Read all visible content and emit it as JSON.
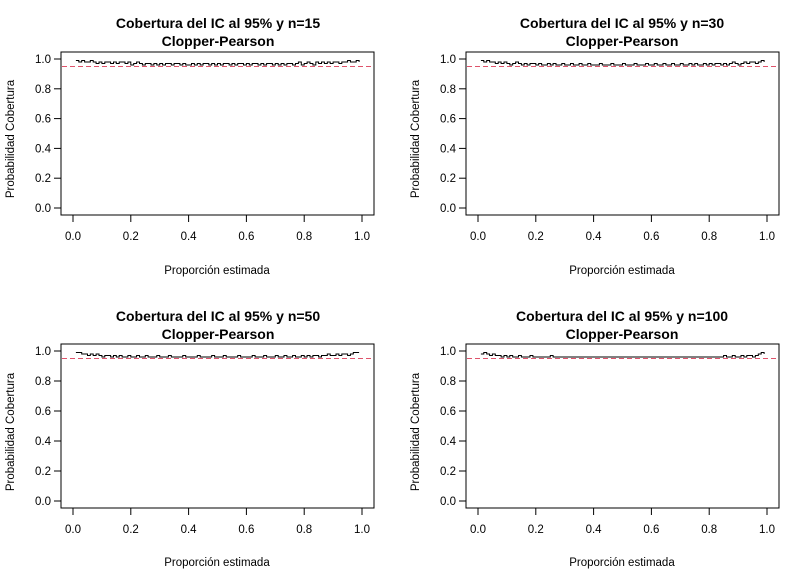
{
  "chart_data": [
    {
      "type": "line",
      "title": "Cobertura del IC al 95% y n=15",
      "subtitle": "Clopper-Pearson",
      "xlabel": "Proporción estimada",
      "ylabel": "Probabilidad Cobertura",
      "n": 15,
      "xlim": [
        0,
        1
      ],
      "ylim": [
        0,
        1
      ],
      "xticks": [
        "0.0",
        "0.2",
        "0.4",
        "0.6",
        "0.8",
        "1.0"
      ],
      "yticks": [
        "0.0",
        "0.2",
        "0.4",
        "0.6",
        "0.8",
        "1.0"
      ],
      "reference_line": {
        "y": 0.95,
        "color": "#df536b",
        "style": "dashed"
      },
      "series": [
        {
          "x": [
            0.01,
            0.02,
            0.03,
            0.04,
            0.05,
            0.06,
            0.07,
            0.08,
            0.09,
            0.1,
            0.11,
            0.12,
            0.13,
            0.14,
            0.15,
            0.16,
            0.17,
            0.18,
            0.19,
            0.2,
            0.21,
            0.22,
            0.23,
            0.24,
            0.25,
            0.26,
            0.27,
            0.28,
            0.29,
            0.3,
            0.31,
            0.32,
            0.33,
            0.34,
            0.35,
            0.36,
            0.37,
            0.38,
            0.39,
            0.4,
            0.41,
            0.42,
            0.43,
            0.44,
            0.45,
            0.46,
            0.47,
            0.48,
            0.49,
            0.5,
            0.51,
            0.52,
            0.53,
            0.54,
            0.55,
            0.56,
            0.57,
            0.58,
            0.59,
            0.6,
            0.61,
            0.62,
            0.63,
            0.64,
            0.65,
            0.66,
            0.67,
            0.68,
            0.69,
            0.7,
            0.71,
            0.72,
            0.73,
            0.74,
            0.75,
            0.76,
            0.77,
            0.78,
            0.79,
            0.8,
            0.81,
            0.82,
            0.83,
            0.84,
            0.85,
            0.86,
            0.87,
            0.88,
            0.89,
            0.9,
            0.91,
            0.92,
            0.93,
            0.94,
            0.95,
            0.96,
            0.97,
            0.98,
            0.99
          ],
          "y": [
            0.99,
            0.98,
            0.99,
            0.98,
            0.98,
            0.99,
            0.98,
            0.97,
            0.98,
            0.97,
            0.98,
            0.98,
            0.97,
            0.98,
            0.97,
            0.98,
            0.98,
            0.97,
            0.98,
            0.96,
            0.97,
            0.98,
            0.97,
            0.96,
            0.97,
            0.97,
            0.96,
            0.97,
            0.96,
            0.97,
            0.96,
            0.97,
            0.97,
            0.96,
            0.97,
            0.97,
            0.96,
            0.97,
            0.96,
            0.96,
            0.97,
            0.96,
            0.97,
            0.96,
            0.97,
            0.97,
            0.96,
            0.97,
            0.96,
            0.97,
            0.96,
            0.97,
            0.97,
            0.96,
            0.97,
            0.96,
            0.97,
            0.97,
            0.96,
            0.97,
            0.96,
            0.97,
            0.97,
            0.96,
            0.97,
            0.96,
            0.97,
            0.97,
            0.96,
            0.97,
            0.96,
            0.97,
            0.96,
            0.97,
            0.97,
            0.96,
            0.97,
            0.98,
            0.96,
            0.97,
            0.98,
            0.97,
            0.96,
            0.98,
            0.97,
            0.98,
            0.97,
            0.98,
            0.97,
            0.98,
            0.98,
            0.97,
            0.98,
            0.98,
            0.99,
            0.98,
            0.98,
            0.99,
            0.98
          ]
        }
      ]
    },
    {
      "type": "line",
      "title": "Cobertura del IC al 95% y n=30",
      "subtitle": "Clopper-Pearson",
      "xlabel": "Proporción estimada",
      "ylabel": "Probabilidad Cobertura",
      "n": 30,
      "xlim": [
        0,
        1
      ],
      "ylim": [
        0,
        1
      ],
      "xticks": [
        "0.0",
        "0.2",
        "0.4",
        "0.6",
        "0.8",
        "1.0"
      ],
      "yticks": [
        "0.0",
        "0.2",
        "0.4",
        "0.6",
        "0.8",
        "1.0"
      ],
      "reference_line": {
        "y": 0.95,
        "color": "#df536b",
        "style": "dashed"
      },
      "series": [
        {
          "x": [
            0.01,
            0.02,
            0.03,
            0.04,
            0.05,
            0.06,
            0.07,
            0.08,
            0.09,
            0.1,
            0.11,
            0.12,
            0.13,
            0.14,
            0.15,
            0.16,
            0.17,
            0.18,
            0.19,
            0.2,
            0.21,
            0.22,
            0.23,
            0.24,
            0.25,
            0.26,
            0.27,
            0.28,
            0.29,
            0.3,
            0.31,
            0.32,
            0.33,
            0.34,
            0.35,
            0.36,
            0.37,
            0.38,
            0.39,
            0.4,
            0.41,
            0.42,
            0.43,
            0.44,
            0.45,
            0.46,
            0.47,
            0.48,
            0.49,
            0.5,
            0.51,
            0.52,
            0.53,
            0.54,
            0.55,
            0.56,
            0.57,
            0.58,
            0.59,
            0.6,
            0.61,
            0.62,
            0.63,
            0.64,
            0.65,
            0.66,
            0.67,
            0.68,
            0.69,
            0.7,
            0.71,
            0.72,
            0.73,
            0.74,
            0.75,
            0.76,
            0.77,
            0.78,
            0.79,
            0.8,
            0.81,
            0.82,
            0.83,
            0.84,
            0.85,
            0.86,
            0.87,
            0.88,
            0.89,
            0.9,
            0.91,
            0.92,
            0.93,
            0.94,
            0.95,
            0.96,
            0.97,
            0.98,
            0.99
          ],
          "y": [
            0.99,
            0.98,
            0.99,
            0.98,
            0.98,
            0.97,
            0.98,
            0.97,
            0.98,
            0.97,
            0.96,
            0.97,
            0.98,
            0.97,
            0.96,
            0.97,
            0.96,
            0.97,
            0.97,
            0.96,
            0.97,
            0.96,
            0.96,
            0.97,
            0.96,
            0.97,
            0.96,
            0.96,
            0.97,
            0.96,
            0.96,
            0.97,
            0.96,
            0.96,
            0.97,
            0.96,
            0.96,
            0.97,
            0.96,
            0.96,
            0.96,
            0.97,
            0.96,
            0.96,
            0.96,
            0.97,
            0.96,
            0.96,
            0.96,
            0.97,
            0.96,
            0.96,
            0.96,
            0.97,
            0.96,
            0.96,
            0.96,
            0.97,
            0.96,
            0.96,
            0.97,
            0.96,
            0.96,
            0.97,
            0.96,
            0.96,
            0.97,
            0.96,
            0.96,
            0.97,
            0.96,
            0.96,
            0.97,
            0.96,
            0.97,
            0.96,
            0.96,
            0.97,
            0.96,
            0.97,
            0.96,
            0.97,
            0.97,
            0.96,
            0.97,
            0.96,
            0.97,
            0.98,
            0.97,
            0.96,
            0.97,
            0.98,
            0.97,
            0.98,
            0.98,
            0.97,
            0.98,
            0.99,
            0.98
          ]
        }
      ]
    },
    {
      "type": "line",
      "title": "Cobertura del IC al 95% y n=50",
      "subtitle": "Clopper-Pearson",
      "xlabel": "Proporción estimada",
      "ylabel": "Probabilidad Cobertura",
      "n": 50,
      "xlim": [
        0,
        1
      ],
      "ylim": [
        0,
        1
      ],
      "xticks": [
        "0.0",
        "0.2",
        "0.4",
        "0.6",
        "0.8",
        "1.0"
      ],
      "yticks": [
        "0.0",
        "0.2",
        "0.4",
        "0.6",
        "0.8",
        "1.0"
      ],
      "reference_line": {
        "y": 0.95,
        "color": "#df536b",
        "style": "dashed"
      },
      "series": [
        {
          "x": [
            0.01,
            0.02,
            0.03,
            0.04,
            0.05,
            0.06,
            0.07,
            0.08,
            0.09,
            0.1,
            0.11,
            0.12,
            0.13,
            0.14,
            0.15,
            0.16,
            0.17,
            0.18,
            0.19,
            0.2,
            0.21,
            0.22,
            0.23,
            0.24,
            0.25,
            0.26,
            0.27,
            0.28,
            0.29,
            0.3,
            0.31,
            0.32,
            0.33,
            0.34,
            0.35,
            0.36,
            0.37,
            0.38,
            0.39,
            0.4,
            0.41,
            0.42,
            0.43,
            0.44,
            0.45,
            0.46,
            0.47,
            0.48,
            0.49,
            0.5,
            0.51,
            0.52,
            0.53,
            0.54,
            0.55,
            0.56,
            0.57,
            0.58,
            0.59,
            0.6,
            0.61,
            0.62,
            0.63,
            0.64,
            0.65,
            0.66,
            0.67,
            0.68,
            0.69,
            0.7,
            0.71,
            0.72,
            0.73,
            0.74,
            0.75,
            0.76,
            0.77,
            0.78,
            0.79,
            0.8,
            0.81,
            0.82,
            0.83,
            0.84,
            0.85,
            0.86,
            0.87,
            0.88,
            0.89,
            0.9,
            0.91,
            0.92,
            0.93,
            0.94,
            0.95,
            0.96,
            0.97,
            0.98,
            0.99
          ],
          "y": [
            0.99,
            0.99,
            0.98,
            0.98,
            0.97,
            0.98,
            0.97,
            0.98,
            0.97,
            0.96,
            0.97,
            0.97,
            0.96,
            0.97,
            0.96,
            0.97,
            0.96,
            0.96,
            0.97,
            0.96,
            0.96,
            0.97,
            0.96,
            0.96,
            0.97,
            0.96,
            0.96,
            0.96,
            0.97,
            0.96,
            0.96,
            0.96,
            0.97,
            0.96,
            0.96,
            0.96,
            0.96,
            0.97,
            0.96,
            0.96,
            0.96,
            0.96,
            0.97,
            0.96,
            0.96,
            0.96,
            0.96,
            0.97,
            0.96,
            0.96,
            0.96,
            0.97,
            0.96,
            0.96,
            0.96,
            0.96,
            0.97,
            0.96,
            0.96,
            0.96,
            0.96,
            0.97,
            0.96,
            0.96,
            0.96,
            0.97,
            0.96,
            0.96,
            0.96,
            0.97,
            0.96,
            0.96,
            0.97,
            0.96,
            0.96,
            0.97,
            0.96,
            0.96,
            0.97,
            0.96,
            0.97,
            0.96,
            0.97,
            0.97,
            0.96,
            0.97,
            0.97,
            0.98,
            0.97,
            0.97,
            0.98,
            0.97,
            0.98,
            0.98,
            0.97,
            0.98,
            0.99,
            0.99,
            0.99
          ]
        }
      ]
    },
    {
      "type": "line",
      "title": "Cobertura del IC al 95% y n=100",
      "subtitle": "Clopper-Pearson",
      "xlabel": "Proporción estimada",
      "ylabel": "Probabilidad Cobertura",
      "n": 100,
      "xlim": [
        0,
        1
      ],
      "ylim": [
        0,
        1
      ],
      "xticks": [
        "0.0",
        "0.2",
        "0.4",
        "0.6",
        "0.8",
        "1.0"
      ],
      "yticks": [
        "0.0",
        "0.2",
        "0.4",
        "0.6",
        "0.8",
        "1.0"
      ],
      "reference_line": {
        "y": 0.95,
        "color": "#df536b",
        "style": "dashed"
      },
      "series": [
        {
          "x": [
            0.01,
            0.02,
            0.03,
            0.04,
            0.05,
            0.06,
            0.07,
            0.08,
            0.09,
            0.1,
            0.11,
            0.12,
            0.13,
            0.14,
            0.15,
            0.16,
            0.17,
            0.18,
            0.19,
            0.2,
            0.21,
            0.22,
            0.23,
            0.24,
            0.25,
            0.26,
            0.27,
            0.28,
            0.29,
            0.3,
            0.31,
            0.32,
            0.33,
            0.34,
            0.35,
            0.36,
            0.37,
            0.38,
            0.39,
            0.4,
            0.41,
            0.42,
            0.43,
            0.44,
            0.45,
            0.46,
            0.47,
            0.48,
            0.49,
            0.5,
            0.51,
            0.52,
            0.53,
            0.54,
            0.55,
            0.56,
            0.57,
            0.58,
            0.59,
            0.6,
            0.61,
            0.62,
            0.63,
            0.64,
            0.65,
            0.66,
            0.67,
            0.68,
            0.69,
            0.7,
            0.71,
            0.72,
            0.73,
            0.74,
            0.75,
            0.76,
            0.77,
            0.78,
            0.79,
            0.8,
            0.81,
            0.82,
            0.83,
            0.84,
            0.85,
            0.86,
            0.87,
            0.88,
            0.89,
            0.9,
            0.91,
            0.92,
            0.93,
            0.94,
            0.95,
            0.96,
            0.97,
            0.98,
            0.99
          ],
          "y": [
            0.98,
            0.99,
            0.98,
            0.97,
            0.98,
            0.97,
            0.97,
            0.96,
            0.97,
            0.96,
            0.97,
            0.96,
            0.96,
            0.97,
            0.96,
            0.96,
            0.96,
            0.97,
            0.96,
            0.96,
            0.96,
            0.96,
            0.96,
            0.96,
            0.97,
            0.96,
            0.96,
            0.96,
            0.96,
            0.96,
            0.96,
            0.96,
            0.96,
            0.96,
            0.96,
            0.96,
            0.96,
            0.96,
            0.96,
            0.96,
            0.96,
            0.96,
            0.96,
            0.96,
            0.96,
            0.96,
            0.96,
            0.96,
            0.96,
            0.96,
            0.96,
            0.96,
            0.96,
            0.96,
            0.96,
            0.96,
            0.96,
            0.96,
            0.96,
            0.96,
            0.96,
            0.96,
            0.96,
            0.96,
            0.96,
            0.96,
            0.96,
            0.96,
            0.96,
            0.96,
            0.96,
            0.96,
            0.96,
            0.96,
            0.96,
            0.96,
            0.96,
            0.96,
            0.96,
            0.96,
            0.96,
            0.96,
            0.96,
            0.96,
            0.97,
            0.96,
            0.96,
            0.97,
            0.96,
            0.96,
            0.97,
            0.96,
            0.97,
            0.97,
            0.96,
            0.97,
            0.98,
            0.99,
            0.98
          ]
        }
      ]
    }
  ]
}
